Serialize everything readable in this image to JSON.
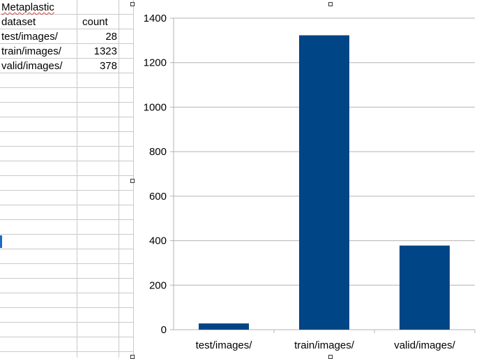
{
  "sheet": {
    "title": "Metaplastic",
    "header": {
      "dataset": "dataset",
      "count": "count"
    },
    "rows": [
      {
        "dataset": "test/images/",
        "count": "28"
      },
      {
        "dataset": "train/images/",
        "count": "1323"
      },
      {
        "dataset": "valid/images/",
        "count": "378"
      }
    ]
  },
  "chart_data": {
    "type": "bar",
    "categories": [
      "test/images/",
      "train/images/",
      "valid/images/"
    ],
    "values": [
      28,
      1323,
      378
    ],
    "yticks": [
      "0",
      "200",
      "400",
      "600",
      "800",
      "1000",
      "1200",
      "1400"
    ],
    "ylim": [
      0,
      1400
    ],
    "grid": true,
    "legend": "none",
    "bar_color": "#004586",
    "gridline_color": "#b3b3b3"
  }
}
